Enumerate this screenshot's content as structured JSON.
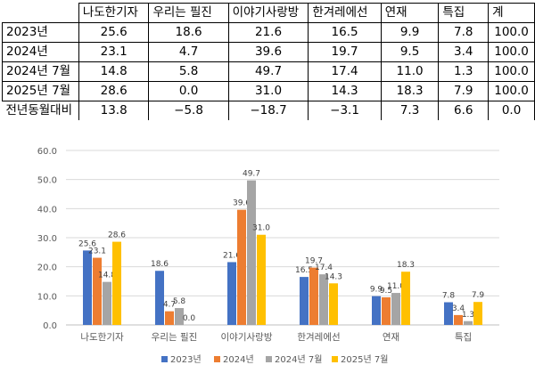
{
  "table": {
    "columns": [
      "나도한기자",
      "우리는 필진",
      "이야기사랑방",
      "한겨레에선",
      "연재",
      "특집",
      "계"
    ],
    "rows": [
      {
        "label": "2023년",
        "values": [
          "25.6",
          "18.6",
          "21.6",
          "16.5",
          "9.9",
          "7.8",
          "100.0"
        ]
      },
      {
        "label": "2024년",
        "values": [
          "23.1",
          "4.7",
          "39.6",
          "19.7",
          "9.5",
          "3.4",
          "100.0"
        ]
      },
      {
        "label": "2024년 7월",
        "values": [
          "14.8",
          "5.8",
          "49.7",
          "17.4",
          "11.0",
          "1.3",
          "100.0"
        ]
      },
      {
        "label": "2025년 7월",
        "values": [
          "28.6",
          "0.0",
          "31.0",
          "14.3",
          "18.3",
          "7.9",
          "100.0"
        ]
      },
      {
        "label": "전년동월대비",
        "values": [
          "13.8",
          "−5.8",
          "−18.7",
          "−3.1",
          "7.3",
          "6.6",
          "0.0"
        ]
      }
    ]
  },
  "chart_data": {
    "type": "bar",
    "categories": [
      "나도한기자",
      "우리는 필진",
      "이야기사랑방",
      "한겨레에선",
      "연재",
      "특집"
    ],
    "series": [
      {
        "name": "2023년",
        "color": "#4472C4",
        "values": [
          25.6,
          18.6,
          21.6,
          16.5,
          9.9,
          7.8
        ]
      },
      {
        "name": "2024년",
        "color": "#ED7D31",
        "values": [
          23.1,
          4.7,
          39.6,
          19.7,
          9.5,
          3.4
        ]
      },
      {
        "name": "2024년 7월",
        "color": "#A5A5A5",
        "values": [
          14.8,
          5.8,
          49.7,
          17.4,
          11.0,
          1.3
        ]
      },
      {
        "name": "2025년 7월",
        "color": "#FFC000",
        "values": [
          28.6,
          0.0,
          31.0,
          14.3,
          18.3,
          7.9
        ]
      }
    ],
    "ylim": [
      0,
      60
    ],
    "yticks": [
      "0.0",
      "10.0",
      "20.0",
      "30.0",
      "40.0",
      "50.0",
      "60.0"
    ],
    "legend_position": "bottom",
    "title": "",
    "xlabel": "",
    "ylabel": ""
  }
}
